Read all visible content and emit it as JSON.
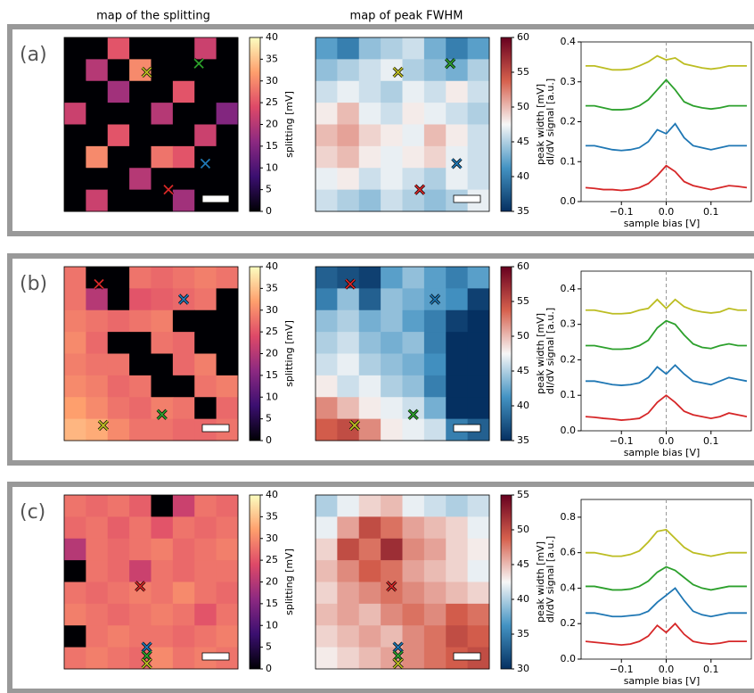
{
  "chart_data": {
    "type": "heatmap-panels",
    "column_titles": [
      "map of the splitting",
      "map of peak FWHM"
    ],
    "spectra_xlabel": "sample bias [V]",
    "spectra_ylabel": "dI/dV signal [a.u.]",
    "x": [
      -0.18,
      -0.16,
      -0.14,
      -0.12,
      -0.1,
      -0.08,
      -0.06,
      -0.04,
      -0.02,
      0,
      0.02,
      0.04,
      0.06,
      0.08,
      0.1,
      0.12,
      0.14,
      0.16,
      0.18
    ],
    "xlim": [
      -0.19,
      0.19
    ],
    "xticks": [
      {
        "value": -0.1,
        "label": "−0.1"
      },
      {
        "value": 0,
        "label": "0.0"
      },
      0.1
    ],
    "panels": [
      {
        "label": "(a)",
        "markers": [
          {
            "color": "#bcbd22",
            "x": 3.8,
            "y": 1.6
          },
          {
            "color": "#2ca02c",
            "x": 6.2,
            "y": 1.2
          },
          {
            "color": "#1f77b4",
            "x": 6.5,
            "y": 5.8
          },
          {
            "color": "#d62728",
            "x": 4.8,
            "y": 7.0
          }
        ],
        "splitting": {
          "colorbar_label": "splitting [mV]",
          "clim": [
            0,
            40
          ],
          "cticks": [
            0,
            5,
            10,
            15,
            20,
            25,
            30,
            35,
            40
          ],
          "values": [
            [
              0,
              0,
              25,
              0,
              0,
              0,
              22,
              0
            ],
            [
              0,
              20,
              0,
              30,
              0,
              0,
              0,
              0
            ],
            [
              0,
              0,
              18,
              0,
              0,
              25,
              0,
              0
            ],
            [
              22,
              0,
              0,
              0,
              20,
              0,
              0,
              15
            ],
            [
              0,
              0,
              25,
              0,
              0,
              0,
              22,
              0
            ],
            [
              0,
              30,
              0,
              0,
              28,
              25,
              0,
              0
            ],
            [
              0,
              0,
              0,
              20,
              0,
              0,
              0,
              0
            ],
            [
              0,
              22,
              0,
              0,
              0,
              18,
              0,
              0
            ]
          ]
        },
        "fwhm": {
          "colorbar_label": "peak width [mV]",
          "clim": [
            35,
            60
          ],
          "cticks": [
            35,
            40,
            45,
            50,
            55,
            60
          ],
          "values": [
            [
              42,
              40,
              44,
              45,
              46,
              43,
              40,
              42
            ],
            [
              44,
              45,
              46,
              47,
              45,
              44,
              43,
              45
            ],
            [
              46,
              47,
              46,
              45,
              47,
              46,
              48,
              46
            ],
            [
              48,
              50,
              47,
              46,
              48,
              47,
              46,
              45
            ],
            [
              50,
              51,
              49,
              48,
              47,
              50,
              48,
              46
            ],
            [
              49,
              50,
              48,
              47,
              48,
              49,
              47,
              46
            ],
            [
              47,
              48,
              46,
              47,
              46,
              45,
              47,
              46
            ],
            [
              46,
              45,
              44,
              46,
              45,
              44,
              45,
              47
            ]
          ]
        },
        "ylim": [
          0,
          0.4
        ],
        "yticks": [
          {
            "value": 0,
            "label": "0.0"
          },
          0.1,
          0.2,
          0.3,
          0.4
        ],
        "series": [
          {
            "color": "#d62728",
            "values": [
              0.035,
              0.033,
              0.03,
              0.03,
              0.028,
              0.03,
              0.035,
              0.045,
              0.065,
              0.09,
              0.075,
              0.05,
              0.04,
              0.035,
              0.03,
              0.035,
              0.04,
              0.038,
              0.035
            ]
          },
          {
            "color": "#1f77b4",
            "values": [
              0.14,
              0.14,
              0.135,
              0.13,
              0.128,
              0.13,
              0.135,
              0.15,
              0.18,
              0.17,
              0.195,
              0.16,
              0.14,
              0.135,
              0.13,
              0.135,
              0.14,
              0.14,
              0.14
            ]
          },
          {
            "color": "#2ca02c",
            "values": [
              0.24,
              0.24,
              0.235,
              0.23,
              0.23,
              0.232,
              0.24,
              0.255,
              0.28,
              0.305,
              0.28,
              0.25,
              0.24,
              0.235,
              0.232,
              0.235,
              0.24,
              0.24,
              0.24
            ]
          },
          {
            "color": "#bcbd22",
            "values": [
              0.34,
              0.34,
              0.335,
              0.33,
              0.33,
              0.332,
              0.34,
              0.35,
              0.365,
              0.355,
              0.36,
              0.345,
              0.34,
              0.335,
              0.332,
              0.335,
              0.34,
              0.34,
              0.34
            ]
          }
        ]
      },
      {
        "label": "(b)",
        "markers": [
          {
            "color": "#d62728",
            "x": 1.6,
            "y": 0.8
          },
          {
            "color": "#1f77b4",
            "x": 5.5,
            "y": 1.5
          },
          {
            "color": "#2ca02c",
            "x": 4.5,
            "y": 6.8
          },
          {
            "color": "#bcbd22",
            "x": 1.8,
            "y": 7.3
          }
        ],
        "splitting": {
          "colorbar_label": "splitting [mV]",
          "clim": [
            0,
            40
          ],
          "cticks": [
            0,
            5,
            10,
            15,
            20,
            25,
            30,
            35,
            40
          ],
          "values": [
            [
              28,
              0,
              0,
              28,
              27,
              28,
              29,
              28
            ],
            [
              28,
              20,
              0,
              25,
              26,
              27,
              28,
              0
            ],
            [
              29,
              28,
              27,
              28,
              29,
              0,
              0,
              0
            ],
            [
              30,
              27,
              0,
              0,
              28,
              27,
              0,
              0
            ],
            [
              29,
              28,
              28,
              0,
              0,
              27,
              29,
              0
            ],
            [
              30,
              29,
              27,
              28,
              0,
              0,
              28,
              29
            ],
            [
              32,
              30,
              28,
              27,
              29,
              28,
              0,
              27
            ],
            [
              34,
              33,
              30,
              28,
              28,
              27,
              27,
              28
            ]
          ]
        },
        "fwhm": {
          "colorbar_label": "peak width [mV]",
          "clim": [
            35,
            60
          ],
          "cticks": [
            35,
            40,
            45,
            50,
            55,
            60
          ],
          "values": [
            [
              38,
              37,
              36,
              42,
              44,
              42,
              40,
              42
            ],
            [
              40,
              44,
              38,
              44,
              43,
              42,
              41,
              36
            ],
            [
              44,
              45,
              43,
              44,
              42,
              40,
              36,
              35
            ],
            [
              45,
              46,
              44,
              43,
              44,
              40,
              35,
              35
            ],
            [
              46,
              47,
              45,
              44,
              43,
              41,
              35,
              35
            ],
            [
              48,
              46,
              47,
              45,
              44,
              40,
              35,
              35
            ],
            [
              52,
              50,
              48,
              47,
              46,
              43,
              35,
              35
            ],
            [
              54,
              55,
              52,
              48,
              47,
              46,
              40,
              38
            ]
          ]
        },
        "ylim": [
          0,
          0.45
        ],
        "yticks": [
          {
            "value": 0,
            "label": "0.0"
          },
          0.1,
          0.2,
          0.3,
          0.4
        ],
        "series": [
          {
            "color": "#d62728",
            "values": [
              0.04,
              0.038,
              0.035,
              0.033,
              0.03,
              0.032,
              0.035,
              0.05,
              0.08,
              0.1,
              0.08,
              0.055,
              0.045,
              0.04,
              0.035,
              0.04,
              0.05,
              0.045,
              0.04
            ]
          },
          {
            "color": "#1f77b4",
            "values": [
              0.14,
              0.14,
              0.135,
              0.13,
              0.128,
              0.13,
              0.135,
              0.15,
              0.18,
              0.16,
              0.185,
              0.16,
              0.14,
              0.135,
              0.13,
              0.14,
              0.15,
              0.145,
              0.14
            ]
          },
          {
            "color": "#2ca02c",
            "values": [
              0.24,
              0.24,
              0.235,
              0.23,
              0.23,
              0.232,
              0.24,
              0.255,
              0.29,
              0.31,
              0.3,
              0.27,
              0.245,
              0.235,
              0.232,
              0.24,
              0.245,
              0.24,
              0.24
            ]
          },
          {
            "color": "#bcbd22",
            "values": [
              0.34,
              0.34,
              0.335,
              0.33,
              0.33,
              0.332,
              0.34,
              0.345,
              0.37,
              0.345,
              0.37,
              0.35,
              0.34,
              0.335,
              0.332,
              0.335,
              0.345,
              0.34,
              0.34
            ]
          }
        ]
      },
      {
        "label": "(c)",
        "markers": [
          {
            "color": "#d62728",
            "x": 3.5,
            "y": 4.2
          },
          {
            "color": "#1f77b4",
            "x": 3.8,
            "y": 7.0
          },
          {
            "color": "#2ca02c",
            "x": 3.8,
            "y": 7.4
          },
          {
            "color": "#bcbd22",
            "x": 3.8,
            "y": 7.75
          }
        ],
        "splitting": {
          "colorbar_label": "splitting [mV]",
          "clim": [
            0,
            40
          ],
          "cticks": [
            0,
            5,
            10,
            15,
            20,
            25,
            30,
            35,
            40
          ],
          "values": [
            [
              28,
              27,
              28,
              26,
              0,
              22,
              28,
              27
            ],
            [
              27,
              28,
              26,
              28,
              25,
              28,
              27,
              28
            ],
            [
              20,
              28,
              27,
              28,
              29,
              27,
              28,
              29
            ],
            [
              0,
              28,
              27,
              22,
              28,
              27,
              28,
              28
            ],
            [
              28,
              27,
              28,
              29,
              28,
              30,
              28,
              27
            ],
            [
              29,
              28,
              27,
              28,
              29,
              28,
              25,
              28
            ],
            [
              0,
              28,
              29,
              28,
              28,
              27,
              28,
              29
            ],
            [
              28,
              29,
              28,
              27,
              30,
              28,
              29,
              28
            ]
          ]
        },
        "fwhm": {
          "colorbar_label": "peak width [mV]",
          "clim": [
            30,
            55
          ],
          "cticks": [
            30,
            35,
            40,
            45,
            50,
            55
          ],
          "values": [
            [
              40,
              42,
              44,
              45,
              42,
              41,
              40,
              41
            ],
            [
              42,
              46,
              50,
              48,
              46,
              45,
              44,
              42
            ],
            [
              44,
              50,
              48,
              52,
              47,
              46,
              44,
              43
            ],
            [
              45,
              47,
              49,
              48,
              46,
              45,
              44,
              42
            ],
            [
              44,
              46,
              47,
              48,
              47,
              46,
              45,
              44
            ],
            [
              45,
              46,
              45,
              47,
              48,
              47,
              49,
              48
            ],
            [
              44,
              45,
              46,
              45,
              47,
              48,
              50,
              49
            ],
            [
              43,
              44,
              45,
              46,
              47,
              48,
              49,
              50
            ]
          ]
        },
        "ylim": [
          0,
          0.9
        ],
        "yticks": [
          {
            "value": 0,
            "label": "0.0"
          },
          0.2,
          0.4,
          0.6,
          0.8
        ],
        "series": [
          {
            "color": "#d62728",
            "values": [
              0.1,
              0.095,
              0.09,
              0.085,
              0.08,
              0.085,
              0.1,
              0.13,
              0.19,
              0.15,
              0.2,
              0.14,
              0.1,
              0.09,
              0.085,
              0.09,
              0.1,
              0.1,
              0.1
            ]
          },
          {
            "color": "#1f77b4",
            "values": [
              0.26,
              0.26,
              0.25,
              0.24,
              0.24,
              0.245,
              0.25,
              0.27,
              0.32,
              0.36,
              0.4,
              0.33,
              0.27,
              0.25,
              0.24,
              0.25,
              0.26,
              0.26,
              0.26
            ]
          },
          {
            "color": "#2ca02c",
            "values": [
              0.41,
              0.41,
              0.4,
              0.39,
              0.39,
              0.395,
              0.41,
              0.44,
              0.49,
              0.52,
              0.5,
              0.46,
              0.42,
              0.4,
              0.39,
              0.4,
              0.41,
              0.41,
              0.41
            ]
          },
          {
            "color": "#bcbd22",
            "values": [
              0.6,
              0.6,
              0.59,
              0.58,
              0.58,
              0.59,
              0.61,
              0.66,
              0.72,
              0.73,
              0.68,
              0.63,
              0.6,
              0.59,
              0.58,
              0.59,
              0.6,
              0.6,
              0.6
            ]
          }
        ]
      }
    ]
  }
}
